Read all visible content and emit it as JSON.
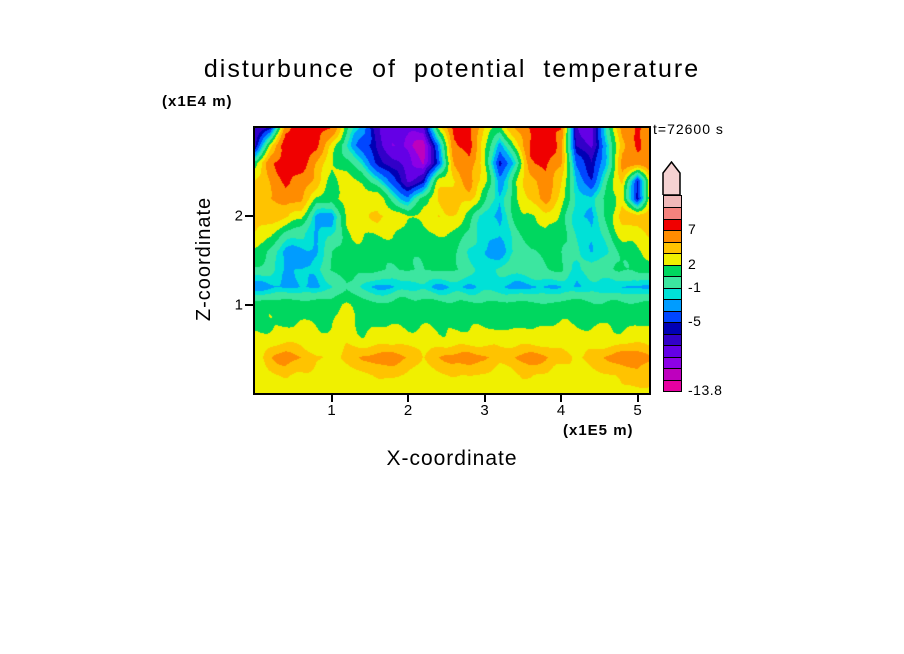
{
  "title": "disturbunce of potential temperature",
  "time_label": "t=72600 s",
  "axes": {
    "x": {
      "label": "X-coordinate",
      "units": "(x1E5 m)",
      "range": [
        0,
        5.15
      ],
      "ticks": [
        {
          "v": 1,
          "t": "1"
        },
        {
          "v": 2,
          "t": "2"
        },
        {
          "v": 3,
          "t": "3"
        },
        {
          "v": 4,
          "t": "4"
        },
        {
          "v": 5,
          "t": "5"
        }
      ]
    },
    "z": {
      "label": "Z-coordinate",
      "units": "(x1E4 m)",
      "range": [
        0,
        3.0
      ],
      "ticks": [
        {
          "v": 1,
          "t": "1"
        },
        {
          "v": 2,
          "t": "2"
        }
      ]
    }
  },
  "colorbar": {
    "palette": [
      "#e600a0",
      "#be00be",
      "#8c00e6",
      "#6400e6",
      "#3200c8",
      "#0000b4",
      "#0046ff",
      "#009cff",
      "#00e1d7",
      "#3ce6a0",
      "#00d75f",
      "#f0f000",
      "#ffc300",
      "#ff8c00",
      "#f00000",
      "#f5827d",
      "#f0b9b9"
    ],
    "thresholds": [
      -12,
      -10.5,
      -9,
      -7.5,
      -6,
      -5,
      -3.5,
      -2,
      -1,
      0.5,
      2,
      3.5,
      5,
      7,
      9,
      11
    ],
    "arrow_color": "#f5d2d2",
    "labels": [
      {
        "t": "7",
        "v": 7
      },
      {
        "t": "2",
        "v": 2
      },
      {
        "t": "-1",
        "v": -1
      },
      {
        "t": "-5",
        "v": -5
      },
      {
        "t": "-13.8",
        "v": -13.8
      }
    ]
  },
  "chart_data": {
    "type": "heatmap",
    "title": "disturbunce of potential temperature",
    "xlabel": "X-coordinate (x1E5 m)",
    "ylabel": "Z-coordinate (x1E4 m)",
    "time_annotation": "t=72600 s",
    "x_range": [
      0,
      5.15
    ],
    "z_range": [
      0,
      3.0
    ],
    "value_min": -13.8,
    "legend_labels": [
      "7",
      "2",
      "-1",
      "-5",
      "-13.8"
    ],
    "grid_x0": 0,
    "grid_dx": 0.2,
    "grid_ztop": 3.0,
    "grid_dz": 0.2,
    "rows_order": "top_to_bottom",
    "grid": [
      [
        -7.5,
        -6,
        5.5,
        8,
        8,
        6,
        1.2,
        -3,
        -6.8,
        -8,
        -8,
        -9,
        2.6,
        8,
        7.5,
        4,
        2,
        5,
        8,
        8.5,
        7,
        -7,
        -8,
        0,
        6,
        8,
        5.5
      ],
      [
        -6,
        3,
        8,
        8.5,
        7,
        3,
        -1,
        -4,
        -6.8,
        -8.5,
        -9.5,
        -11.5,
        -3,
        7,
        8,
        3,
        -3,
        3,
        7.5,
        8.5,
        6,
        -6,
        -7.5,
        -2,
        5,
        7,
        6
      ],
      [
        2,
        6,
        8,
        8,
        5,
        2,
        1.2,
        -1,
        -5,
        -7.5,
        -8.5,
        -11,
        -4,
        5,
        7,
        2,
        -6,
        -1,
        6,
        8,
        5,
        -4,
        -6,
        -1,
        5,
        6,
        7
      ],
      [
        3,
        5,
        7,
        6,
        4,
        1.2,
        2,
        2,
        -1,
        -5,
        -7.5,
        -6,
        2.6,
        4,
        6,
        3,
        -3,
        1.2,
        4,
        7,
        4,
        -2,
        -4,
        0,
        4,
        -5,
        5.5
      ],
      [
        4,
        5,
        6,
        5,
        2,
        1.2,
        3,
        4,
        3,
        0,
        -3,
        1.2,
        4,
        5,
        4,
        1.2,
        -2,
        2,
        4,
        6,
        3,
        -1,
        -2,
        1.2,
        3,
        -6,
        4.5
      ],
      [
        4.5,
        4,
        4,
        3,
        -2,
        -3,
        2,
        3,
        4,
        3,
        2,
        3,
        4,
        3,
        2,
        -2,
        -3,
        1.2,
        2,
        3,
        2,
        -2,
        -3,
        1.2,
        4,
        4,
        5.5
      ],
      [
        3,
        2,
        0,
        -1,
        -2,
        -1,
        1.2,
        2,
        2,
        2,
        1.2,
        2,
        2,
        1.2,
        0,
        -2,
        -2,
        0,
        1.2,
        2,
        1.2,
        -1,
        -2,
        0,
        2,
        3,
        4
      ],
      [
        1.2,
        0,
        -2,
        -3,
        -2,
        0,
        1.2,
        1.2,
        1.2,
        1.2,
        0.8,
        1.2,
        1.2,
        0.8,
        -1,
        -2,
        -2,
        -1,
        0.8,
        1.2,
        0.8,
        -1,
        -2,
        -1,
        1.2,
        2,
        2.4
      ],
      [
        0.5,
        -0.5,
        -2,
        -2,
        -1,
        0.5,
        1.2,
        1.2,
        0.8,
        0.8,
        0.8,
        0.8,
        0.8,
        0.5,
        -0.5,
        -1,
        -1,
        0,
        0.5,
        0.5,
        0.5,
        -1,
        -1,
        0,
        0.5,
        1.2,
        1.2
      ],
      [
        -2.3,
        -2.3,
        -2.3,
        -2.3,
        -2.3,
        -1.5,
        0.5,
        -1.5,
        -2.3,
        -2.3,
        -1.5,
        -1.5,
        -2.3,
        -2.3,
        -2.3,
        -1.5,
        -1.5,
        -2.3,
        -2.3,
        -2.3,
        -2.3,
        -2.3,
        -1.5,
        -1.5,
        -2.3,
        -2.3,
        -2.3
      ],
      [
        1.2,
        1.2,
        1.2,
        1.2,
        1.2,
        1.2,
        2.2,
        1.2,
        1.2,
        1.2,
        1.2,
        1.2,
        1.2,
        1.2,
        1.2,
        1.2,
        1.2,
        1.2,
        1.2,
        1.2,
        1.2,
        1.2,
        1.2,
        1.2,
        1.2,
        1.2,
        1.2
      ],
      [
        1.8,
        1.8,
        1.8,
        1.8,
        1.8,
        1.8,
        2.8,
        1.8,
        1.8,
        1.8,
        1.8,
        1.8,
        1.8,
        1.8,
        1.8,
        1.8,
        1.8,
        1.8,
        1.8,
        1.8,
        1.8,
        1.8,
        1.8,
        1.8,
        1.8,
        1.8,
        1.8
      ],
      [
        2.6,
        2.6,
        2.6,
        2.6,
        2.6,
        2.6,
        3.2,
        2.6,
        2.6,
        2.6,
        2.6,
        2.6,
        2.6,
        2.6,
        2.6,
        2.6,
        2.6,
        2.6,
        2.6,
        2.6,
        2.6,
        2.6,
        2.6,
        2.6,
        2.6,
        2.6,
        2.6
      ],
      [
        2.6,
        4.5,
        5.8,
        5,
        3.5,
        2.8,
        3.8,
        5,
        5.8,
        5.8,
        5,
        3.2,
        5,
        5.8,
        6.3,
        5.5,
        3.8,
        5,
        5.8,
        5.5,
        4.5,
        3.2,
        4.5,
        5.5,
        5.8,
        6.3,
        5.5
      ],
      [
        2.6,
        3.2,
        3.8,
        3.2,
        2.6,
        2.6,
        2.8,
        3.2,
        3.8,
        3.8,
        3.2,
        2.6,
        3.2,
        3.8,
        3.8,
        3.2,
        2.6,
        3.2,
        3.8,
        3.2,
        2.6,
        2.6,
        3.2,
        3.2,
        3.8,
        4.2,
        3.8
      ],
      [
        2.6,
        2.6,
        2.6,
        2.6,
        2.6,
        2.6,
        2.6,
        2.6,
        2.6,
        2.6,
        2.6,
        2.6,
        2.6,
        2.6,
        2.6,
        2.6,
        2.6,
        2.6,
        2.6,
        2.6,
        2.6,
        2.6,
        2.6,
        2.6,
        3,
        3,
        3
      ]
    ],
    "noise": {
      "base": 0.55,
      "z_gain": 0.6
    }
  }
}
